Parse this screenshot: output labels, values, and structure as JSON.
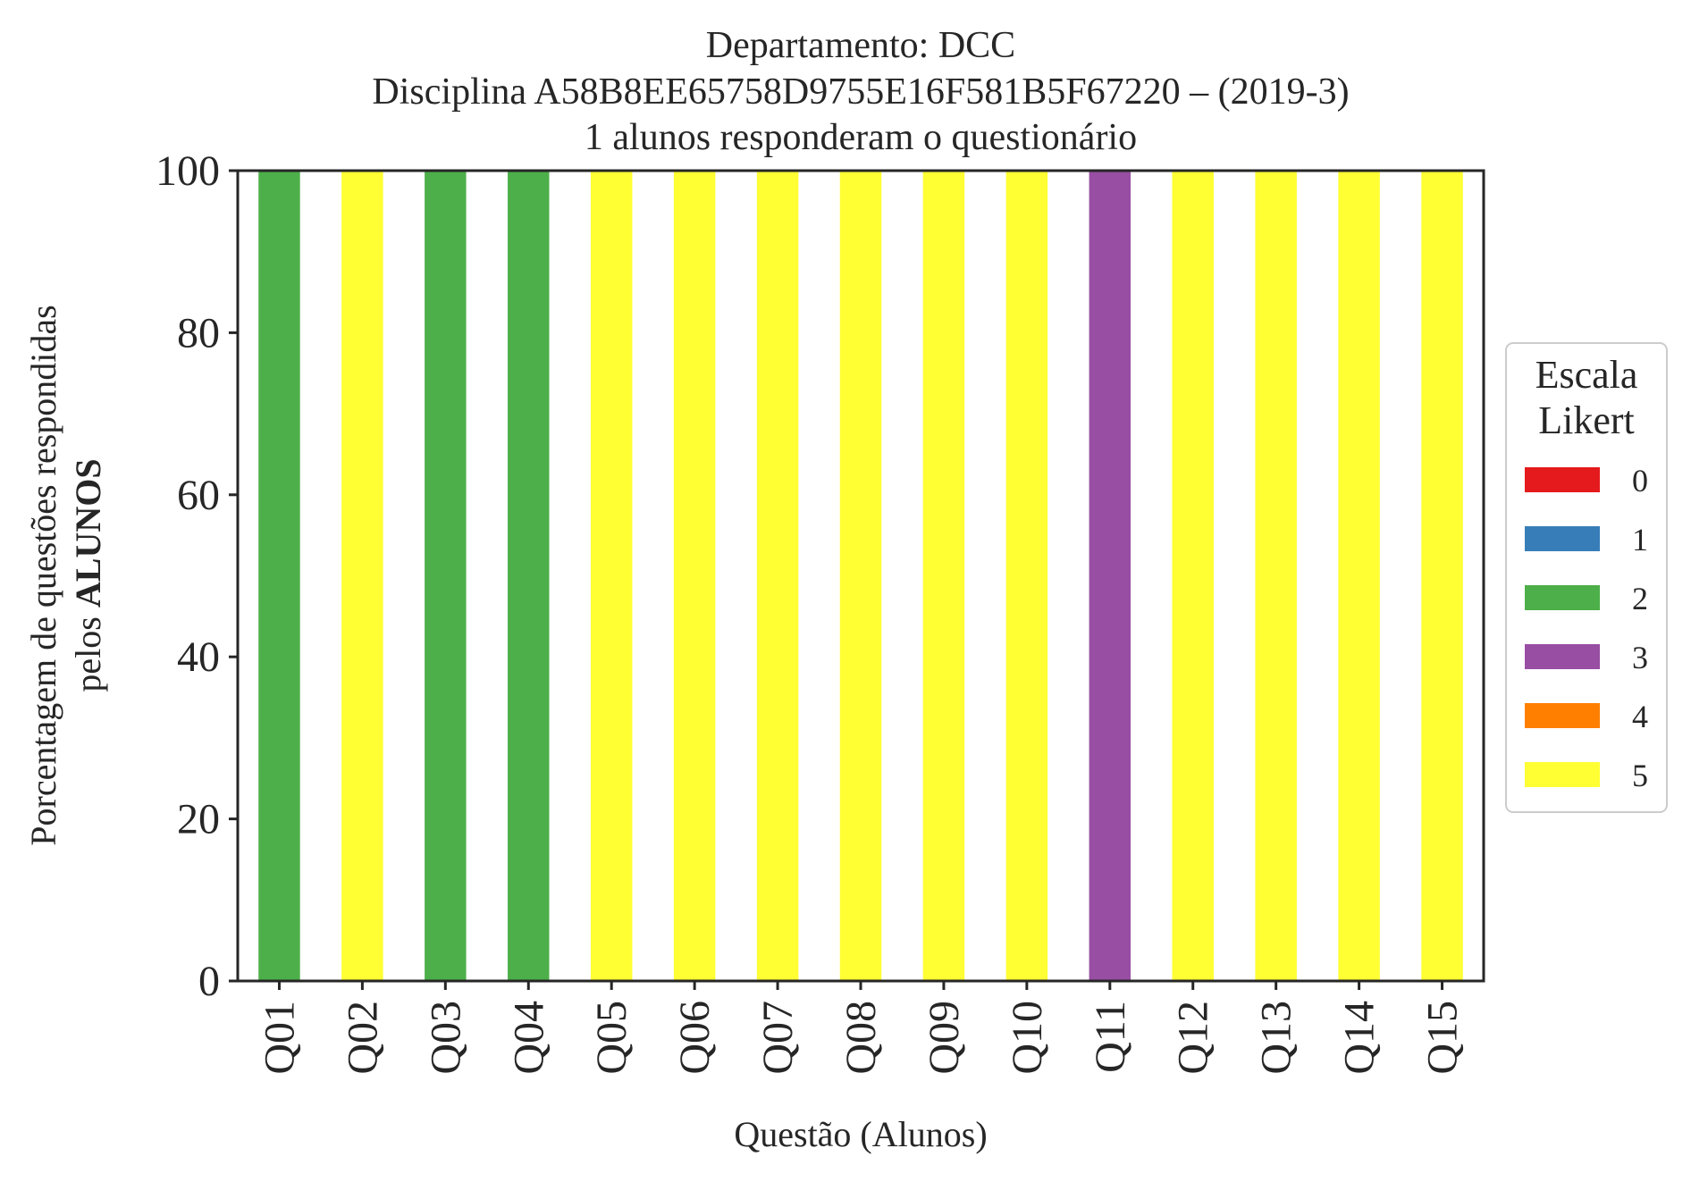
{
  "chart_data": {
    "type": "bar",
    "stacked": true,
    "title_lines": [
      "Departamento: DCC",
      "Disciplina A58B8EE65758D9755E16F581B5F67220 – (2019-3)",
      "1 alunos responderam o questionário"
    ],
    "xlabel": "Questão (Alunos)",
    "ylabel_line1": "Porcentagem de questões respondidas",
    "ylabel_line2_prefix": "pelos ",
    "ylabel_line2_bold": "ALUNOS",
    "ylim": [
      0,
      100
    ],
    "yticks": [
      0,
      20,
      40,
      60,
      80,
      100
    ],
    "categories": [
      "Q01",
      "Q02",
      "Q03",
      "Q04",
      "Q05",
      "Q06",
      "Q07",
      "Q08",
      "Q09",
      "Q10",
      "Q11",
      "Q12",
      "Q13",
      "Q14",
      "Q15"
    ],
    "series": [
      {
        "name": "0",
        "color": "#e41a1c",
        "values": [
          0,
          0,
          0,
          0,
          0,
          0,
          0,
          0,
          0,
          0,
          0,
          0,
          0,
          0,
          0
        ]
      },
      {
        "name": "1",
        "color": "#377eb8",
        "values": [
          0,
          0,
          0,
          0,
          0,
          0,
          0,
          0,
          0,
          0,
          0,
          0,
          0,
          0,
          0
        ]
      },
      {
        "name": "2",
        "color": "#4daf4a",
        "values": [
          100,
          0,
          100,
          100,
          0,
          0,
          0,
          0,
          0,
          0,
          0,
          0,
          0,
          0,
          0
        ]
      },
      {
        "name": "3",
        "color": "#984ea3",
        "values": [
          0,
          0,
          0,
          0,
          0,
          0,
          0,
          0,
          0,
          0,
          100,
          0,
          0,
          0,
          0
        ]
      },
      {
        "name": "4",
        "color": "#ff7f00",
        "values": [
          0,
          0,
          0,
          0,
          0,
          0,
          0,
          0,
          0,
          0,
          0,
          0,
          0,
          0,
          0
        ]
      },
      {
        "name": "5",
        "color": "#ffff33",
        "values": [
          0,
          100,
          0,
          0,
          100,
          100,
          100,
          100,
          100,
          100,
          0,
          100,
          100,
          100,
          100
        ]
      }
    ],
    "legend": {
      "title_lines": [
        "Escala",
        "Likert"
      ],
      "placement": "center-right"
    },
    "grid": false
  }
}
